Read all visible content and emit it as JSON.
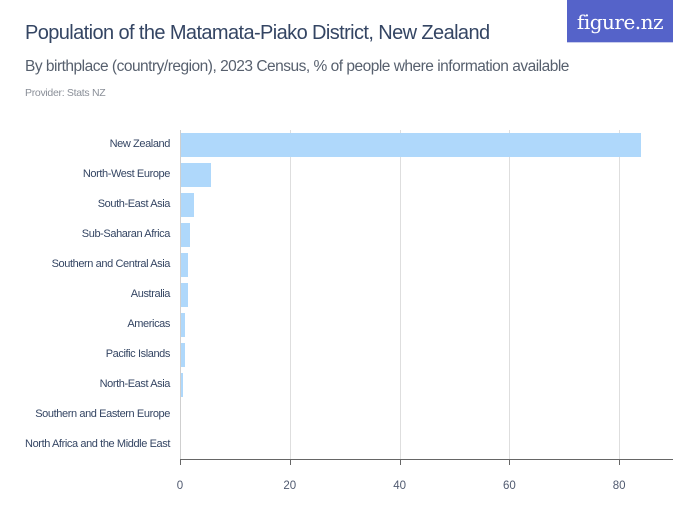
{
  "header": {
    "title": "Population of the Matamata-Piako District, New Zealand",
    "subtitle": "By birthplace (country/region), 2023 Census, % of people where information available",
    "provider": "Provider: Stats NZ"
  },
  "logo": {
    "text": "figure.nz",
    "bg_color": "#5563c9"
  },
  "colors": {
    "bar": "#afd8fb",
    "grid": "#dedede",
    "text": "#344563"
  },
  "chart_data": {
    "type": "bar",
    "orientation": "horizontal",
    "title": "Population of the Matamata-Piako District, New Zealand",
    "subtitle": "By birthplace (country/region), 2023 Census, % of people where information available",
    "xlabel": "",
    "ylabel": "",
    "xlim": [
      0,
      90
    ],
    "grid": true,
    "legend": "none",
    "categories": [
      "New Zealand",
      "North-West Europe",
      "South-East Asia",
      "Sub-Saharan Africa",
      "Southern and Central Asia",
      "Australia",
      "Americas",
      "Pacific Islands",
      "North-East Asia",
      "Southern and Eastern Europe",
      "North Africa and the Middle East"
    ],
    "values": [
      84.0,
      5.6,
      2.5,
      1.9,
      1.5,
      1.4,
      0.9,
      0.9,
      0.5,
      0.2,
      0.1
    ],
    "x_ticks": [
      "0",
      "20",
      "40",
      "60",
      "80"
    ]
  }
}
